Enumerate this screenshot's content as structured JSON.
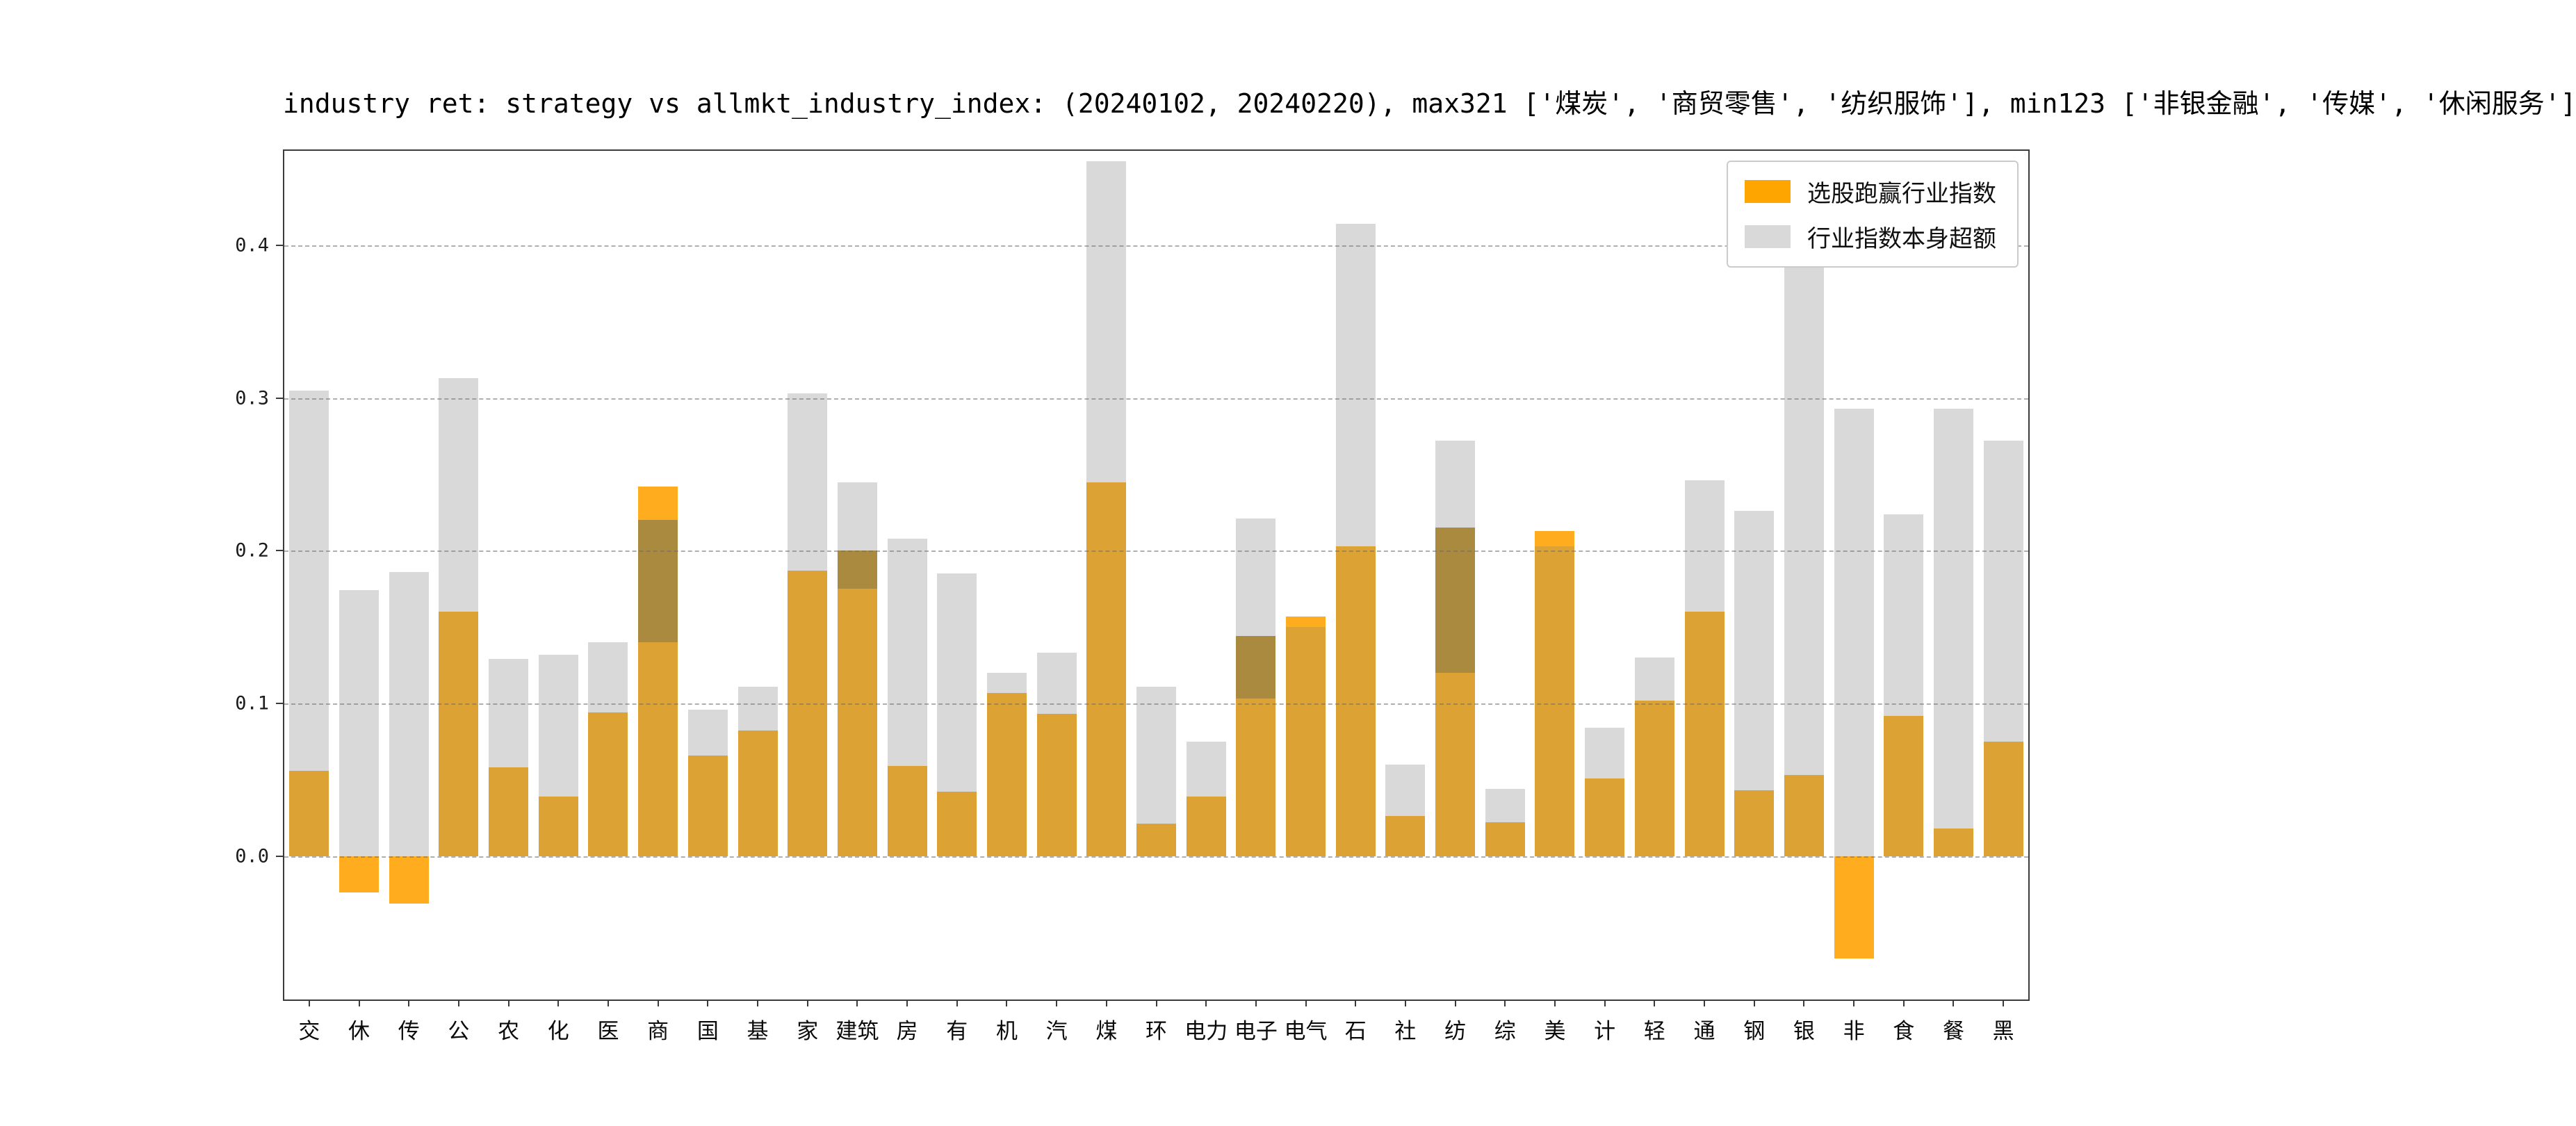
{
  "figure": {
    "title": "industry ret: strategy vs allmkt_industry_index: (20240102, 20240220), max321 ['煤炭', '商贸零售', '纺织服饰'], min123 ['非银金融', '传媒', '休闲服务']"
  },
  "legend": {
    "items": [
      {
        "label": "选股跑赢行业指数",
        "color": "#ffa500"
      },
      {
        "label": "行业指数本身超额",
        "color": "#d9d9d9"
      }
    ]
  },
  "colors": {
    "orange_legend": "#ffa500",
    "orange_over_gray": "#dda234",
    "orange_bright": "#ffac1e",
    "gray_bar": "#d9d9d9",
    "dark_band": "#a98a3e",
    "grid": "#6e6e6e",
    "spine": "#3a3a3a"
  },
  "axes": {
    "y_ticks": [
      "0.0",
      "0.1",
      "0.2",
      "0.3",
      "0.4"
    ],
    "y_tick_values": [
      0.0,
      0.1,
      0.2,
      0.3,
      0.4
    ]
  },
  "chart_data": {
    "type": "bar",
    "title": "industry ret: strategy vs allmkt_industry_index: (20240102, 20240220), max321 ['煤炭', '商贸零售', '纺织服饰'], min123 ['非银金融', '传媒', '休闲服务']",
    "xlabel": "",
    "ylabel": "",
    "ylim": [
      -0.094,
      0.462
    ],
    "grid": "horizontal dashed at 0.0/0.1/0.2/0.3/0.4",
    "legend_position": "upper right",
    "bar_style": "overlaid (both series from zero), orange in front of gray",
    "categories": [
      "交",
      "休",
      "传",
      "公",
      "农",
      "化",
      "医",
      "商",
      "国",
      "基",
      "家",
      "建筑",
      "房",
      "有",
      "机",
      "汽",
      "煤",
      "环",
      "电力",
      "电子",
      "电气",
      "石",
      "社",
      "纺",
      "综",
      "美",
      "计",
      "轻",
      "通",
      "钢",
      "银",
      "非",
      "食",
      "餐",
      "黑"
    ],
    "series": [
      {
        "name": "选股跑赢行业指数",
        "color": "#ffa500",
        "values": [
          0.056,
          -0.024,
          -0.031,
          0.16,
          0.058,
          0.039,
          0.094,
          0.242,
          0.066,
          0.082,
          0.187,
          0.178,
          0.059,
          0.042,
          0.107,
          0.093,
          0.245,
          0.021,
          0.039,
          0.144,
          0.157,
          0.203,
          0.026,
          0.215,
          0.022,
          0.213,
          0.051,
          0.102,
          0.16,
          0.043,
          0.053,
          -0.067,
          0.092,
          0.018,
          0.075
        ]
      },
      {
        "name": "行业指数本身超额",
        "color": "#d9d9d9",
        "values": [
          0.305,
          0.174,
          0.186,
          0.313,
          0.129,
          0.132,
          0.14,
          0.22,
          0.096,
          0.111,
          0.303,
          0.245,
          0.208,
          0.185,
          0.12,
          0.133,
          0.455,
          0.111,
          0.075,
          0.221,
          0.15,
          0.414,
          0.06,
          0.272,
          0.044,
          0.203,
          0.084,
          0.13,
          0.246,
          0.226,
          0.408,
          0.293,
          0.224,
          0.293,
          0.272
        ]
      }
    ],
    "overlap_bands": [
      {
        "category": "商",
        "from": 0.14,
        "to": 0.22
      },
      {
        "category": "建筑",
        "from": 0.175,
        "to": 0.2
      },
      {
        "category": "电子",
        "from": 0.103,
        "to": 0.144
      },
      {
        "category": "纺",
        "from": 0.12,
        "to": 0.215
      }
    ]
  }
}
